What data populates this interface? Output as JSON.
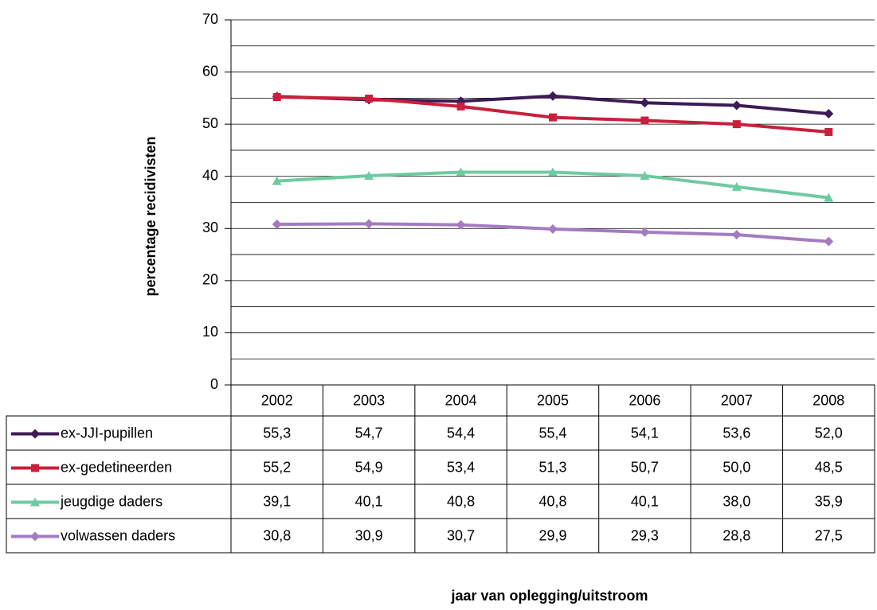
{
  "chart_data": {
    "type": "line",
    "y_axis_label": "percentage recidivisten",
    "x_axis_label": "jaar van oplegging/uitstroom",
    "categories": [
      "2002",
      "2003",
      "2004",
      "2005",
      "2006",
      "2007",
      "2008"
    ],
    "ylim": [
      0,
      70
    ],
    "yticks": [
      0,
      10,
      20,
      30,
      40,
      50,
      60,
      70
    ],
    "y_minor_gridlines": [
      5,
      15,
      25,
      35,
      45,
      55,
      65
    ],
    "grid": true,
    "data_table": true,
    "series": [
      {
        "name": "ex-JJI-pupillen",
        "color": "#3d1b55",
        "marker": "diamond",
        "values": [
          55.3,
          54.7,
          54.4,
          55.4,
          54.1,
          53.6,
          52.0
        ],
        "value_labels": [
          "55,3",
          "54,7",
          "54,4",
          "55,4",
          "54,1",
          "53,6",
          "52,0"
        ]
      },
      {
        "name": "ex-gedetineerden",
        "color": "#c8203c",
        "marker": "square",
        "values": [
          55.2,
          54.9,
          53.4,
          51.3,
          50.7,
          50.0,
          48.5
        ],
        "value_labels": [
          "55,2",
          "54,9",
          "53,4",
          "51,3",
          "50,7",
          "50,0",
          "48,5"
        ]
      },
      {
        "name": "jeugdige daders",
        "color": "#6dcba0",
        "marker": "triangle",
        "values": [
          39.1,
          40.1,
          40.8,
          40.8,
          40.1,
          38.0,
          35.9
        ],
        "value_labels": [
          "39,1",
          "40,1",
          "40,8",
          "40,8",
          "40,1",
          "38,0",
          "35,9"
        ]
      },
      {
        "name": "volwassen daders",
        "color": "#a57bc0",
        "marker": "diamond",
        "values": [
          30.8,
          30.9,
          30.7,
          29.9,
          29.3,
          28.8,
          27.5
        ],
        "value_labels": [
          "30,8",
          "30,9",
          "30,7",
          "29,9",
          "29,3",
          "28,8",
          "27,5"
        ]
      }
    ]
  }
}
